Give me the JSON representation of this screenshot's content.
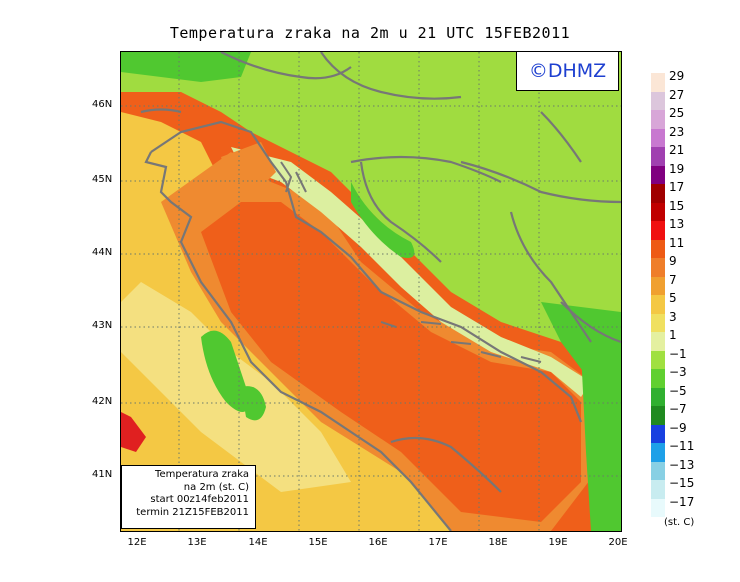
{
  "title": "Temperatura zraka na 2m u 21 UTC 15FEB2011",
  "copyright": "©DHMZ",
  "info_box": {
    "lines": [
      "Temperatura zraka",
      "na 2m (st. C)",
      "start 00z14feb2011",
      "termin 21Z15FEB2011"
    ]
  },
  "latitude_labels": [
    "46N",
    "45N",
    "44N",
    "43N",
    "42N",
    "41N"
  ],
  "longitude_labels": [
    "12E",
    "13E",
    "14E",
    "15E",
    "16E",
    "17E",
    "18E",
    "19E",
    "20E"
  ],
  "legend": {
    "labels": [
      "29",
      "27",
      "25",
      "23",
      "21",
      "19",
      "17",
      "15",
      "13",
      "11",
      "9",
      "7",
      "5",
      "3",
      "1",
      "−1",
      "−3",
      "−5",
      "−7",
      "−9",
      "−11",
      "−13",
      "−15",
      "−17"
    ],
    "colors": [
      "#fbe6d6",
      "#dcc6dc",
      "#d8a6d8",
      "#c878d0",
      "#a040b0",
      "#800080",
      "#a00000",
      "#c00000",
      "#f01010",
      "#ee5a14",
      "#ef7e2a",
      "#f0a030",
      "#f4c844",
      "#f0e060",
      "#e4f0a0",
      "#a0e040",
      "#60d030",
      "#30b030",
      "#208a20",
      "#1840e0",
      "#1ea0e8",
      "#88d0e4",
      "#c8ecf0",
      "#e8fafc"
    ],
    "unit": "(st. C)"
  },
  "map_colors": {
    "sea_warm": "#ef5f1a",
    "coast_orange": "#ef8a30",
    "yellow": "#f4c844",
    "pale_yellow": "#f4e080",
    "pale_green": "#dcefa0",
    "light_green": "#a0dc40",
    "green": "#50c830",
    "dark_green": "#208a20",
    "red": "#e02020",
    "border": "#777777",
    "grid": "#6a7a6a"
  }
}
